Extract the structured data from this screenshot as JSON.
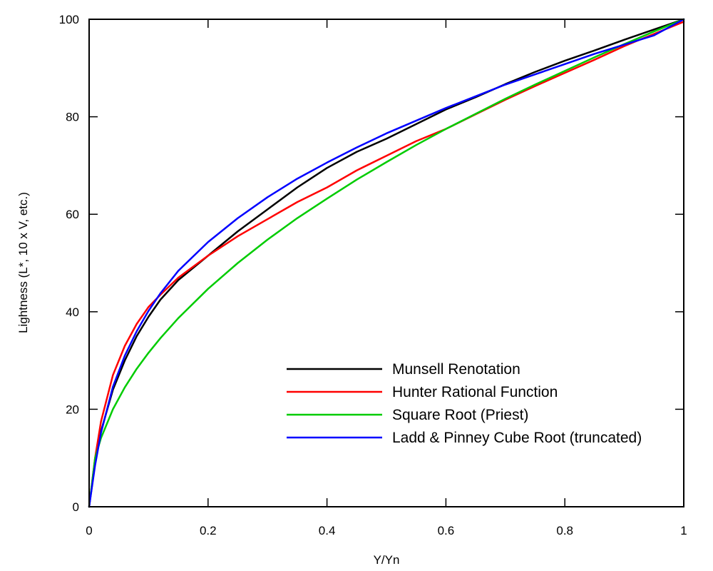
{
  "chart_data": {
    "type": "line",
    "title": "",
    "xlabel": "Y/Yn",
    "ylabel": "Lightness (L*, 10 x V, etc.)",
    "xlim": [
      0,
      1
    ],
    "ylim": [
      0,
      100
    ],
    "x_ticks": [
      0,
      0.2,
      0.4,
      0.6,
      0.8,
      1
    ],
    "x_tick_labels": [
      "0",
      "0.2",
      "0.4",
      "0.6",
      "0.8",
      "1"
    ],
    "y_ticks": [
      0,
      20,
      40,
      60,
      80,
      100
    ],
    "y_tick_labels": [
      "0",
      "20",
      "40",
      "60",
      "80",
      "100"
    ],
    "grid": false,
    "legend_position": "lower-right",
    "x": [
      0,
      0.01,
      0.02,
      0.04,
      0.06,
      0.08,
      0.1,
      0.12,
      0.15,
      0.2,
      0.25,
      0.3,
      0.35,
      0.4,
      0.45,
      0.5,
      0.55,
      0.6,
      0.65,
      0.7,
      0.75,
      0.8,
      0.85,
      0.9,
      0.95,
      1
    ],
    "series": [
      {
        "name": "Munsell Renotation",
        "color": "#000000",
        "values": [
          0,
          9,
          15.5,
          24,
          30,
          35,
          39,
          42.5,
          46.5,
          51.5,
          56.5,
          61,
          65.5,
          69.5,
          72.8,
          75.5,
          78.5,
          81.5,
          84,
          86.7,
          89.2,
          91.5,
          93.6,
          95.8,
          97.9,
          100
        ]
      },
      {
        "name": "Hunter Rational Function",
        "color": "#ff0000",
        "values": [
          0,
          10,
          17.5,
          27,
          33,
          37.5,
          41,
          43.5,
          47,
          51.5,
          55.5,
          59,
          62.5,
          65.5,
          69,
          72,
          75,
          77.5,
          80.5,
          83.5,
          86.3,
          89,
          91.7,
          94.5,
          97,
          99.5
        ]
      },
      {
        "name": "Square Root (Priest)",
        "color": "#00cc00",
        "values": [
          0,
          10,
          14.1,
          20,
          24.5,
          28.3,
          31.6,
          34.6,
          38.7,
          44.7,
          50,
          54.8,
          59.2,
          63.2,
          67.1,
          70.7,
          74.2,
          77.5,
          80.6,
          83.7,
          86.6,
          89.4,
          92.2,
          94.9,
          97.5,
          100
        ]
      },
      {
        "name": "Ladd & Pinney Cube Root (truncated)",
        "color": "#0000ff",
        "values": [
          0,
          8.5,
          15.2,
          24.6,
          31,
          36,
          40.2,
          43.8,
          48.4,
          54.3,
          59.2,
          63.5,
          67.3,
          70.6,
          73.7,
          76.6,
          79.2,
          81.8,
          84.2,
          86.6,
          88.7,
          90.8,
          92.9,
          94.8,
          96.7,
          100
        ]
      }
    ]
  }
}
